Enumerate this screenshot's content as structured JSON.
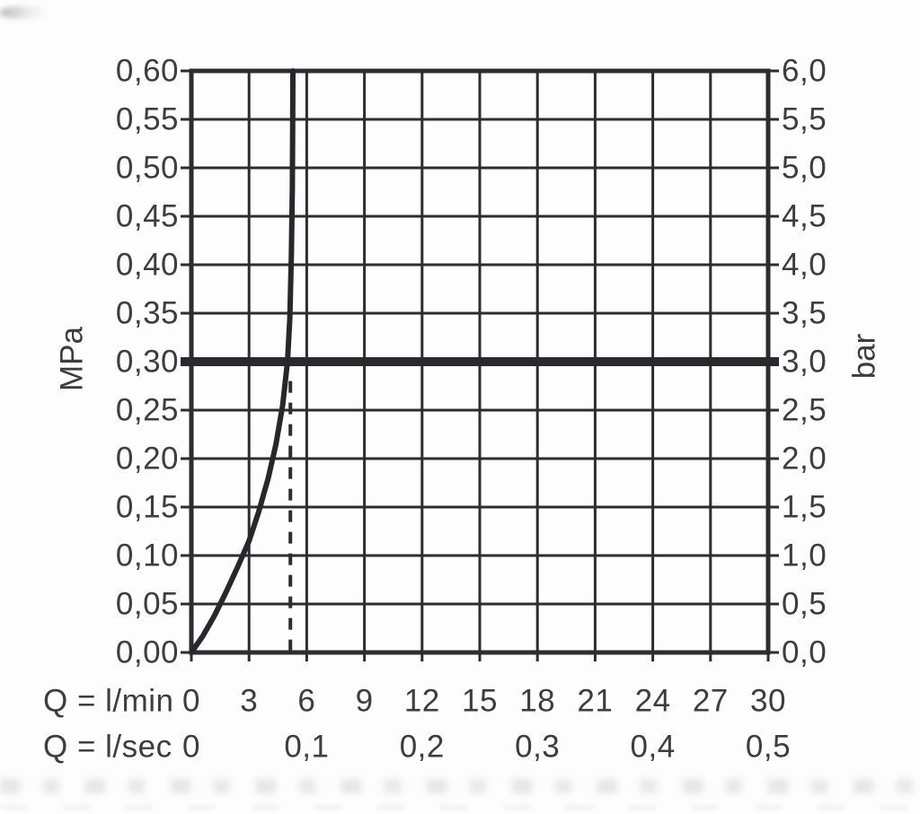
{
  "chart_data": {
    "type": "line",
    "grid": true,
    "legend": false,
    "x_axis": {
      "range": [
        0,
        30
      ],
      "gridline_step": 3,
      "rows": [
        {
          "label": "Q = l/min",
          "ticks": [
            {
              "v": 0,
              "t": "0"
            },
            {
              "v": 3,
              "t": "3"
            },
            {
              "v": 6,
              "t": "6"
            },
            {
              "v": 9,
              "t": "9"
            },
            {
              "v": 12,
              "t": "12"
            },
            {
              "v": 15,
              "t": "15"
            },
            {
              "v": 18,
              "t": "18"
            },
            {
              "v": 21,
              "t": "21"
            },
            {
              "v": 24,
              "t": "24"
            },
            {
              "v": 27,
              "t": "27"
            },
            {
              "v": 30,
              "t": "30"
            }
          ]
        },
        {
          "label": "Q = l/sec",
          "ticks": [
            {
              "v": 0,
              "t": "0"
            },
            {
              "v": 6,
              "t": "0,1"
            },
            {
              "v": 12,
              "t": "0,2"
            },
            {
              "v": 18,
              "t": "0,3"
            },
            {
              "v": 24,
              "t": "0,4"
            },
            {
              "v": 30,
              "t": "0,5"
            }
          ]
        }
      ]
    },
    "y_axis_left": {
      "label": "MPa",
      "range": [
        0,
        0.6
      ],
      "step": 0.05,
      "ticks": [
        {
          "v": 0.0,
          "t": "0,00"
        },
        {
          "v": 0.05,
          "t": "0,05"
        },
        {
          "v": 0.1,
          "t": "0,10"
        },
        {
          "v": 0.15,
          "t": "0,15"
        },
        {
          "v": 0.2,
          "t": "0,20"
        },
        {
          "v": 0.25,
          "t": "0,25"
        },
        {
          "v": 0.3,
          "t": "0,30"
        },
        {
          "v": 0.35,
          "t": "0,35"
        },
        {
          "v": 0.4,
          "t": "0,40"
        },
        {
          "v": 0.45,
          "t": "0,45"
        },
        {
          "v": 0.5,
          "t": "0,50"
        },
        {
          "v": 0.55,
          "t": "0,55"
        },
        {
          "v": 0.6,
          "t": "0,60"
        }
      ]
    },
    "y_axis_right": {
      "label": "bar",
      "range": [
        0,
        6
      ],
      "step": 0.5,
      "ticks": [
        {
          "v": 0.0,
          "t": "0,0"
        },
        {
          "v": 0.5,
          "t": "0,5"
        },
        {
          "v": 1.0,
          "t": "1,0"
        },
        {
          "v": 1.5,
          "t": "1,5"
        },
        {
          "v": 2.0,
          "t": "2,0"
        },
        {
          "v": 2.5,
          "t": "2,5"
        },
        {
          "v": 3.0,
          "t": "3,0"
        },
        {
          "v": 3.5,
          "t": "3,5"
        },
        {
          "v": 4.0,
          "t": "4,0"
        },
        {
          "v": 4.5,
          "t": "4,5"
        },
        {
          "v": 5.0,
          "t": "5,0"
        },
        {
          "v": 5.5,
          "t": "5,5"
        },
        {
          "v": 6.0,
          "t": "6,0"
        }
      ]
    },
    "series": [
      {
        "name": "pressure-flow-curve",
        "style": "solid",
        "points_q_lmin_p_mpa": [
          [
            0,
            0
          ],
          [
            0.6,
            0.017
          ],
          [
            1.2,
            0.038
          ],
          [
            1.8,
            0.062
          ],
          [
            2.4,
            0.088
          ],
          [
            3.0,
            0.115
          ],
          [
            3.5,
            0.145
          ],
          [
            4.0,
            0.18
          ],
          [
            4.4,
            0.215
          ],
          [
            4.75,
            0.255
          ],
          [
            5.0,
            0.3
          ],
          [
            5.12,
            0.345
          ],
          [
            5.2,
            0.41
          ],
          [
            5.25,
            0.48
          ],
          [
            5.27,
            0.55
          ],
          [
            5.28,
            0.6
          ]
        ]
      }
    ],
    "reference_lines": [
      {
        "name": "bold-horizontal-3bar",
        "orientation": "horizontal",
        "p_mpa": 0.3,
        "p_bar": 3.0,
        "style": "bold"
      },
      {
        "name": "dashed-vertical-flow-at-3bar",
        "orientation": "vertical",
        "q_lmin": 5.15,
        "p_from_mpa": 0,
        "p_to_mpa": 0.28,
        "style": "dashed"
      }
    ],
    "colors": {
      "grid_line": "#2d2d31",
      "curve": "#28282c",
      "reference_bold": "#2a2a2e",
      "text": "#3c3c41",
      "background": "#fdfdfd"
    }
  }
}
